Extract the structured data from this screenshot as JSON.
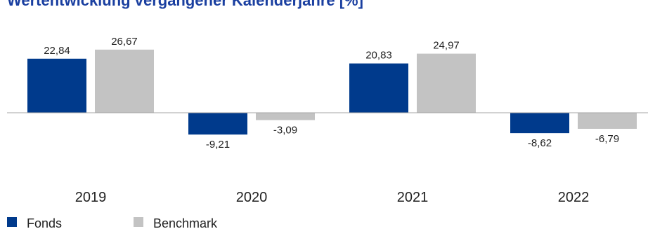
{
  "chart_data": {
    "type": "bar",
    "title": "Wertentwicklung vergangener Kalenderjahre [%]",
    "categories": [
      "2019",
      "2020",
      "2021",
      "2022"
    ],
    "series": [
      {
        "name": "Fonds",
        "values": [
          22.84,
          -9.21,
          20.83,
          -8.62
        ],
        "labels": [
          "22,84",
          "-9,21",
          "20,83",
          "-8,62"
        ],
        "color": "#003a8c"
      },
      {
        "name": "Benchmark",
        "values": [
          26.67,
          -3.09,
          24.97,
          -6.79
        ],
        "labels": [
          "26,67",
          "-3,09",
          "24,97",
          "-6,79"
        ],
        "color": "#c3c3c3"
      }
    ],
    "xlabel": "",
    "ylabel": "",
    "grid": false,
    "legend": "bottom-left",
    "baseline_color": "#a6a6a6",
    "title_color": "#1a3fa0"
  }
}
